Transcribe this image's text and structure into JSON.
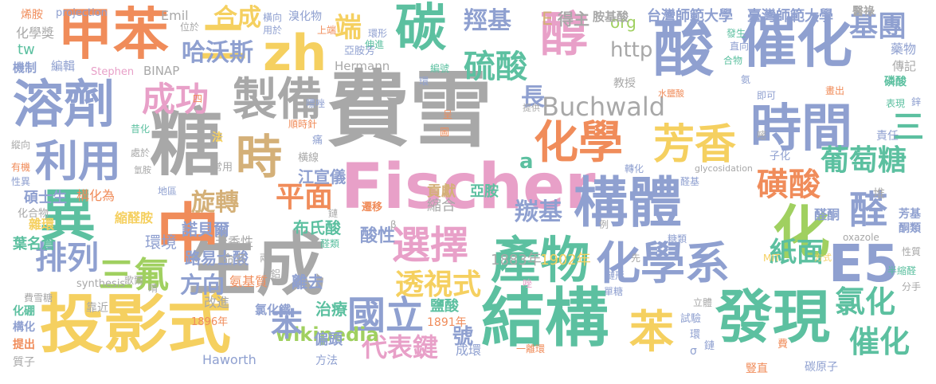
{
  "cloud": {
    "palette": [
      "#e8a0c8",
      "#f5d060",
      "#8fa0d0",
      "#f08c5a",
      "#5cc0a0",
      "#a8a8a8",
      "#a0d060",
      "#d4b078"
    ],
    "words": [
      {
        "text": "費雪",
        "color": "#a8a8a8"
      },
      {
        "text": "Fischer",
        "color": "#e8a0c8"
      },
      {
        "text": "生成",
        "color": "#a8a8a8"
      },
      {
        "text": "投影式",
        "color": "#f5d060"
      },
      {
        "text": "結構",
        "color": "#5cc0a0"
      },
      {
        "text": "發現",
        "color": "#5cc0a0"
      },
      {
        "text": "甲苯",
        "color": "#f08c5a"
      },
      {
        "text": "zh",
        "color": "#f5d060"
      },
      {
        "text": "碳",
        "color": "#5cc0a0"
      },
      {
        "text": "醇",
        "color": "#e8a0c8"
      },
      {
        "text": "酸",
        "color": "#8fa0d0"
      },
      {
        "text": "催化",
        "color": "#8fa0d0"
      },
      {
        "text": "溶劑",
        "color": "#8fa0d0"
      },
      {
        "text": "糖",
        "color": "#a8a8a8"
      },
      {
        "text": "製備",
        "color": "#a8a8a8"
      },
      {
        "text": "時",
        "color": "#d4b078"
      },
      {
        "text": "化學",
        "color": "#f08c5a"
      },
      {
        "text": "時間",
        "color": "#8fa0d0"
      },
      {
        "text": "構體",
        "color": "#8fa0d0"
      },
      {
        "text": "異",
        "color": "#5cc0a0"
      },
      {
        "text": "中",
        "color": "#f08c5a"
      },
      {
        "text": "產物",
        "color": "#5cc0a0"
      },
      {
        "text": "化學系",
        "color": "#8fa0d0"
      },
      {
        "text": "E5",
        "color": "#8fa0d0"
      },
      {
        "text": "國立",
        "color": "#8fa0d0"
      },
      {
        "text": "利用",
        "color": "#8fa0d0"
      },
      {
        "text": "芳香",
        "color": "#f5d060"
      },
      {
        "text": "選擇",
        "color": "#e8a0c8"
      },
      {
        "text": "Buchwald",
        "color": "#a8a8a8"
      },
      {
        "text": "硫酸",
        "color": "#5cc0a0"
      },
      {
        "text": "成功",
        "color": "#e8a0c8"
      },
      {
        "text": "三氟",
        "color": "#a0d060"
      },
      {
        "text": "排列",
        "color": "#8fa0d0"
      },
      {
        "text": "苯",
        "color": "#f5d060"
      },
      {
        "text": "氯化",
        "color": "#5cc0a0"
      },
      {
        "text": "催化",
        "color": "#5cc0a0"
      },
      {
        "text": "化",
        "color": "#a0d060"
      },
      {
        "text": "醛",
        "color": "#8fa0d0"
      },
      {
        "text": "磺酸",
        "color": "#f08c5a"
      },
      {
        "text": "二",
        "color": "#f5d060"
      },
      {
        "text": "平面",
        "color": "#f08c5a"
      },
      {
        "text": "旋轉",
        "color": "#d4b078"
      },
      {
        "text": "哈沃斯",
        "color": "#8fa0d0"
      },
      {
        "text": "合成",
        "color": "#f5d060"
      },
      {
        "text": "羥基",
        "color": "#8fa0d0"
      },
      {
        "text": "端",
        "color": "#f5d060"
      },
      {
        "text": "基團",
        "color": "#8fa0d0"
      },
      {
        "text": "葡萄糖",
        "color": "#5cc0a0"
      },
      {
        "text": "紙面",
        "color": "#5cc0a0"
      },
      {
        "text": "透視式",
        "color": "#f5d060"
      },
      {
        "text": "羰基",
        "color": "#8fa0d0"
      },
      {
        "text": "代表鍵",
        "color": "#e8a0c8"
      },
      {
        "text": "wikipedia",
        "color": "#a0d060"
      },
      {
        "text": "方向",
        "color": "#8fa0d0"
      },
      {
        "text": "苯",
        "color": "#8fa0d0"
      },
      {
        "text": "號",
        "color": "#8fa0d0"
      },
      {
        "text": "http",
        "color": "#a8a8a8"
      },
      {
        "text": "a",
        "color": "#5cc0a0"
      },
      {
        "text": "長",
        "color": "#8fa0d0"
      },
      {
        "text": "三",
        "color": "#5cc0a0"
      },
      {
        "text": "org",
        "color": "#a0d060"
      },
      {
        "text": "E",
        "color": "#d4b078"
      },
      {
        "text": "得主",
        "color": "#a8a8a8"
      },
      {
        "text": "胺基酸",
        "color": "#a8a8a8"
      },
      {
        "text": "台灣師範大學",
        "color": "#8fa0d0"
      },
      {
        "text": "臺灣師範大學",
        "color": "#8fa0d0"
      },
      {
        "text": "醫祿",
        "color": "#a8a8a8"
      },
      {
        "text": "1883年",
        "color": "#a8a8a8"
      },
      {
        "text": "1902年",
        "color": "#f5d060"
      },
      {
        "text": "諾貝爾",
        "color": "#8fa0d0"
      },
      {
        "text": "路易士酸",
        "color": "#8fa0d0"
      },
      {
        "text": "江宣儀",
        "color": "#8fa0d0"
      },
      {
        "text": "布氏酸",
        "color": "#5cc0a0"
      },
      {
        "text": "酸性",
        "color": "#8fa0d0"
      },
      {
        "text": "貢獻",
        "color": "#d4b078"
      },
      {
        "text": "亞胺",
        "color": "#5cc0a0"
      },
      {
        "text": "縮合",
        "color": "#a8a8a8"
      },
      {
        "text": "治療",
        "color": "#5cc0a0"
      },
      {
        "text": "離去",
        "color": "#8fa0d0"
      },
      {
        "text": "偏頭",
        "color": "#8fa0d0"
      },
      {
        "text": "鹽酸",
        "color": "#5cc0a0"
      },
      {
        "text": "成環",
        "color": "#8fa0d0"
      },
      {
        "text": "1891年",
        "color": "#f08c5a"
      },
      {
        "text": "1896年",
        "color": "#f08c5a"
      },
      {
        "text": "Haworth",
        "color": "#8fa0d0"
      },
      {
        "text": "方法",
        "color": "#8fa0d0"
      },
      {
        "text": "氯化鐵",
        "color": "#8fa0d0"
      },
      {
        "text": "改進",
        "color": "#a8a8a8"
      },
      {
        "text": "靠近",
        "color": "#a8a8a8"
      },
      {
        "text": "氨基質",
        "color": "#f08c5a"
      },
      {
        "text": "環境",
        "color": "#8fa0d0"
      },
      {
        "text": "芳香性",
        "color": "#a8a8a8"
      },
      {
        "text": "命名",
        "color": "#a8a8a8"
      },
      {
        "text": "縮醛胺",
        "color": "#f5d060"
      },
      {
        "text": "葉名倉",
        "color": "#5cc0a0"
      },
      {
        "text": "雜環",
        "color": "#f5d060"
      },
      {
        "text": "碩士生",
        "color": "#8fa0d0"
      },
      {
        "text": "構化為",
        "color": "#f08c5a"
      },
      {
        "text": "化合物",
        "color": "#a8a8a8"
      },
      {
        "text": "歌爾",
        "color": "#a8a8a8"
      },
      {
        "text": "費雪糖",
        "color": "#a8a8a8"
      },
      {
        "text": "化硼",
        "color": "#5cc0a0"
      },
      {
        "text": "構化",
        "color": "#8fa0d0"
      },
      {
        "text": "提出",
        "color": "#f08c5a"
      },
      {
        "text": "質子",
        "color": "#a8a8a8"
      },
      {
        "text": "synthesis",
        "color": "#a8a8a8"
      },
      {
        "text": "projection",
        "color": "#8fa0d0"
      },
      {
        "text": "Emil",
        "color": "#a8a8a8"
      },
      {
        "text": "化學獎",
        "color": "#a8a8a8"
      },
      {
        "text": "tw",
        "color": "#5cc0a0"
      },
      {
        "text": "編輯",
        "color": "#8fa0d0"
      },
      {
        "text": "機制",
        "color": "#8fa0d0"
      },
      {
        "text": "Stephen",
        "color": "#e8a0c8"
      },
      {
        "text": "BINAP",
        "color": "#a8a8a8"
      },
      {
        "text": "Hermann",
        "color": "#a8a8a8"
      },
      {
        "text": "亞胺芳",
        "color": "#8fa0d0"
      },
      {
        "text": "教授",
        "color": "#a8a8a8"
      },
      {
        "text": "藥物",
        "color": "#8fa0d0"
      },
      {
        "text": "傳記",
        "color": "#a8a8a8"
      },
      {
        "text": "磷酸",
        "color": "#5cc0a0"
      },
      {
        "text": "表現",
        "color": "#5cc0a0"
      },
      {
        "text": "責任",
        "color": "#8fa0d0"
      },
      {
        "text": "子化",
        "color": "#8fa0d0"
      },
      {
        "text": "堆",
        "color": "#a8a8a8"
      },
      {
        "text": "醛酮",
        "color": "#8fa0d0"
      },
      {
        "text": "芳基",
        "color": "#8fa0d0"
      },
      {
        "text": "酮類",
        "color": "#8fa0d0"
      },
      {
        "text": "oxazole",
        "color": "#a8a8a8"
      },
      {
        "text": "性質",
        "color": "#a8a8a8"
      },
      {
        "text": "半縮醛",
        "color": "#5cc0a0"
      },
      {
        "text": "分手",
        "color": "#a8a8a8"
      },
      {
        "text": "MIT",
        "color": "#f5d060"
      },
      {
        "text": "方式",
        "color": "#f5d060"
      },
      {
        "text": "立體",
        "color": "#a8a8a8"
      },
      {
        "text": "試驗",
        "color": "#8fa0d0"
      },
      {
        "text": "環",
        "color": "#8fa0d0"
      },
      {
        "text": "鏈",
        "color": "#8fa0d0"
      },
      {
        "text": "σ",
        "color": "#8fa0d0"
      },
      {
        "text": "豎直",
        "color": "#f08c5a"
      },
      {
        "text": "碳原子",
        "color": "#8fa0d0"
      },
      {
        "text": "費",
        "color": "#f08c5a"
      },
      {
        "text": "單糖",
        "color": "#8fa0d0"
      },
      {
        "text": "糖類",
        "color": "#8fa0d0"
      },
      {
        "text": "鏈形",
        "color": "#8fa0d0"
      },
      {
        "text": "先",
        "color": "#a8a8a8"
      },
      {
        "text": "唑",
        "color": "#e8a0c8"
      },
      {
        "text": "例",
        "color": "#a8a8a8"
      },
      {
        "text": "醛基",
        "color": "#8fa0d0"
      },
      {
        "text": "轉化",
        "color": "#8fa0d0"
      },
      {
        "text": "glycosidation",
        "color": "#a8a8a8"
      },
      {
        "text": "水鹽酸",
        "color": "#f08c5a"
      },
      {
        "text": "嘧",
        "color": "#a8a8a8"
      },
      {
        "text": "畫出",
        "color": "#f08c5a"
      },
      {
        "text": "即可",
        "color": "#8fa0d0"
      },
      {
        "text": "氨",
        "color": "#8fa0d0"
      },
      {
        "text": "合物",
        "color": "#5cc0a0"
      },
      {
        "text": "發生",
        "color": "#5cc0a0"
      },
      {
        "text": "直向",
        "color": "#8fa0d0"
      },
      {
        "text": "鋅",
        "color": "#8fa0d0"
      },
      {
        "text": "提供",
        "color": "#a8a8a8"
      },
      {
        "text": "呈",
        "color": "#f08c5a"
      },
      {
        "text": "圖",
        "color": "#f08c5a"
      },
      {
        "text": "順時針",
        "color": "#f08c5a"
      },
      {
        "text": "痛",
        "color": "#8fa0d0"
      },
      {
        "text": "橫線",
        "color": "#a8a8a8"
      },
      {
        "text": "常用",
        "color": "#a8a8a8"
      },
      {
        "text": "地區",
        "color": "#8fa0d0"
      },
      {
        "text": "處於",
        "color": "#a8a8a8"
      },
      {
        "text": "氫胺",
        "color": "#a8a8a8"
      },
      {
        "text": "法",
        "color": "#f5d060"
      },
      {
        "text": "四",
        "color": "#f08c5a"
      },
      {
        "text": "昔化",
        "color": "#5cc0a0"
      },
      {
        "text": "縱向",
        "color": "#a8a8a8"
      },
      {
        "text": "有機",
        "color": "#f08c5a"
      },
      {
        "text": "性異",
        "color": "#8fa0d0"
      },
      {
        "text": "烯胺",
        "color": "#f08c5a"
      },
      {
        "text": "位於",
        "color": "#a8a8a8"
      },
      {
        "text": "橫向",
        "color": "#8fa0d0"
      },
      {
        "text": "溴化物",
        "color": "#8fa0d0"
      },
      {
        "text": "用於",
        "color": "#8fa0d0"
      },
      {
        "text": "上端",
        "color": "#f08c5a"
      },
      {
        "text": "伸進",
        "color": "#5cc0a0"
      },
      {
        "text": "環形",
        "color": "#8fa0d0"
      },
      {
        "text": "編號",
        "color": "#5cc0a0"
      },
      {
        "text": "環",
        "color": "#8fa0d0"
      },
      {
        "text": "嘌唑",
        "color": "#8fa0d0"
      },
      {
        "text": "鏈",
        "color": "#a8a8a8"
      },
      {
        "text": "醛類",
        "color": "#5cc0a0"
      },
      {
        "text": "兩",
        "color": "#a8a8a8"
      },
      {
        "text": "鋁",
        "color": "#a8a8a8"
      },
      {
        "text": "晴",
        "color": "#a8a8a8"
      },
      {
        "text": "遷移",
        "color": "#f08c5a"
      },
      {
        "text": "β",
        "color": "#a8a8a8"
      },
      {
        "text": "一離環",
        "color": "#f08c5a"
      }
    ]
  }
}
